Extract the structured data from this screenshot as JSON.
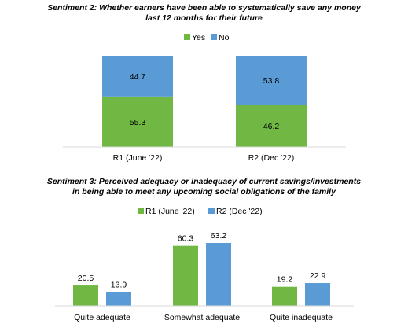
{
  "chart_data": [
    {
      "type": "bar",
      "stacked": true,
      "title_lines": [
        "Sentiment 2: Whether earners have been able to systematically save any money",
        "last 12 months for their future"
      ],
      "categories": [
        "R1 (June '22)",
        "R2 (Dec '22)"
      ],
      "series": [
        {
          "name": "Yes",
          "values": [
            55.3,
            46.2
          ],
          "color": "#70b843"
        },
        {
          "name": "No",
          "values": [
            44.7,
            53.8
          ],
          "color": "#5b9bd5"
        }
      ],
      "ylim": [
        0,
        100
      ],
      "legend_position": "top-center",
      "grid": false
    },
    {
      "type": "bar",
      "stacked": false,
      "title_lines": [
        "Sentiment 3: Perceived adequacy or inadequacy of current savings/investments",
        "in being able to meet any upcoming social obligations of the family"
      ],
      "categories": [
        "Quite adequate",
        "Somewhat adequate",
        "Quite inadequate"
      ],
      "series": [
        {
          "name": "R1 (June '22)",
          "values": [
            20.5,
            60.3,
            19.2
          ],
          "color": "#70b843"
        },
        {
          "name": "R2 (Dec '22)",
          "values": [
            13.9,
            63.2,
            22.9
          ],
          "color": "#5b9bd5"
        }
      ],
      "ylim": [
        0,
        70
      ],
      "legend_position": "top-center",
      "grid": false
    }
  ]
}
